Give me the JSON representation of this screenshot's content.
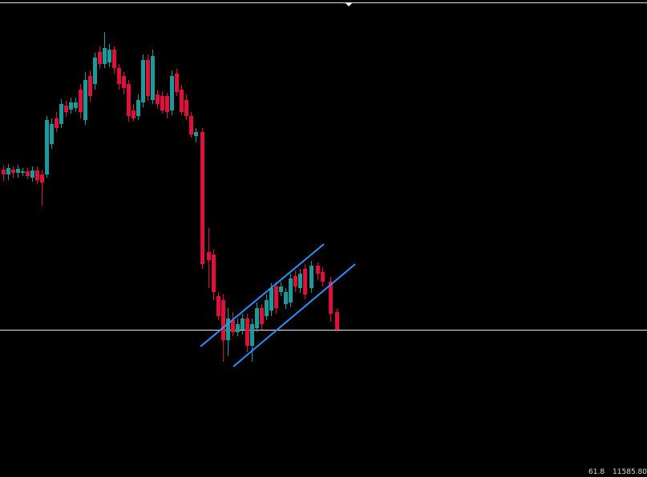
{
  "status_bar": {
    "value_1": "61.8",
    "value_2": "11585.80"
  }
}
